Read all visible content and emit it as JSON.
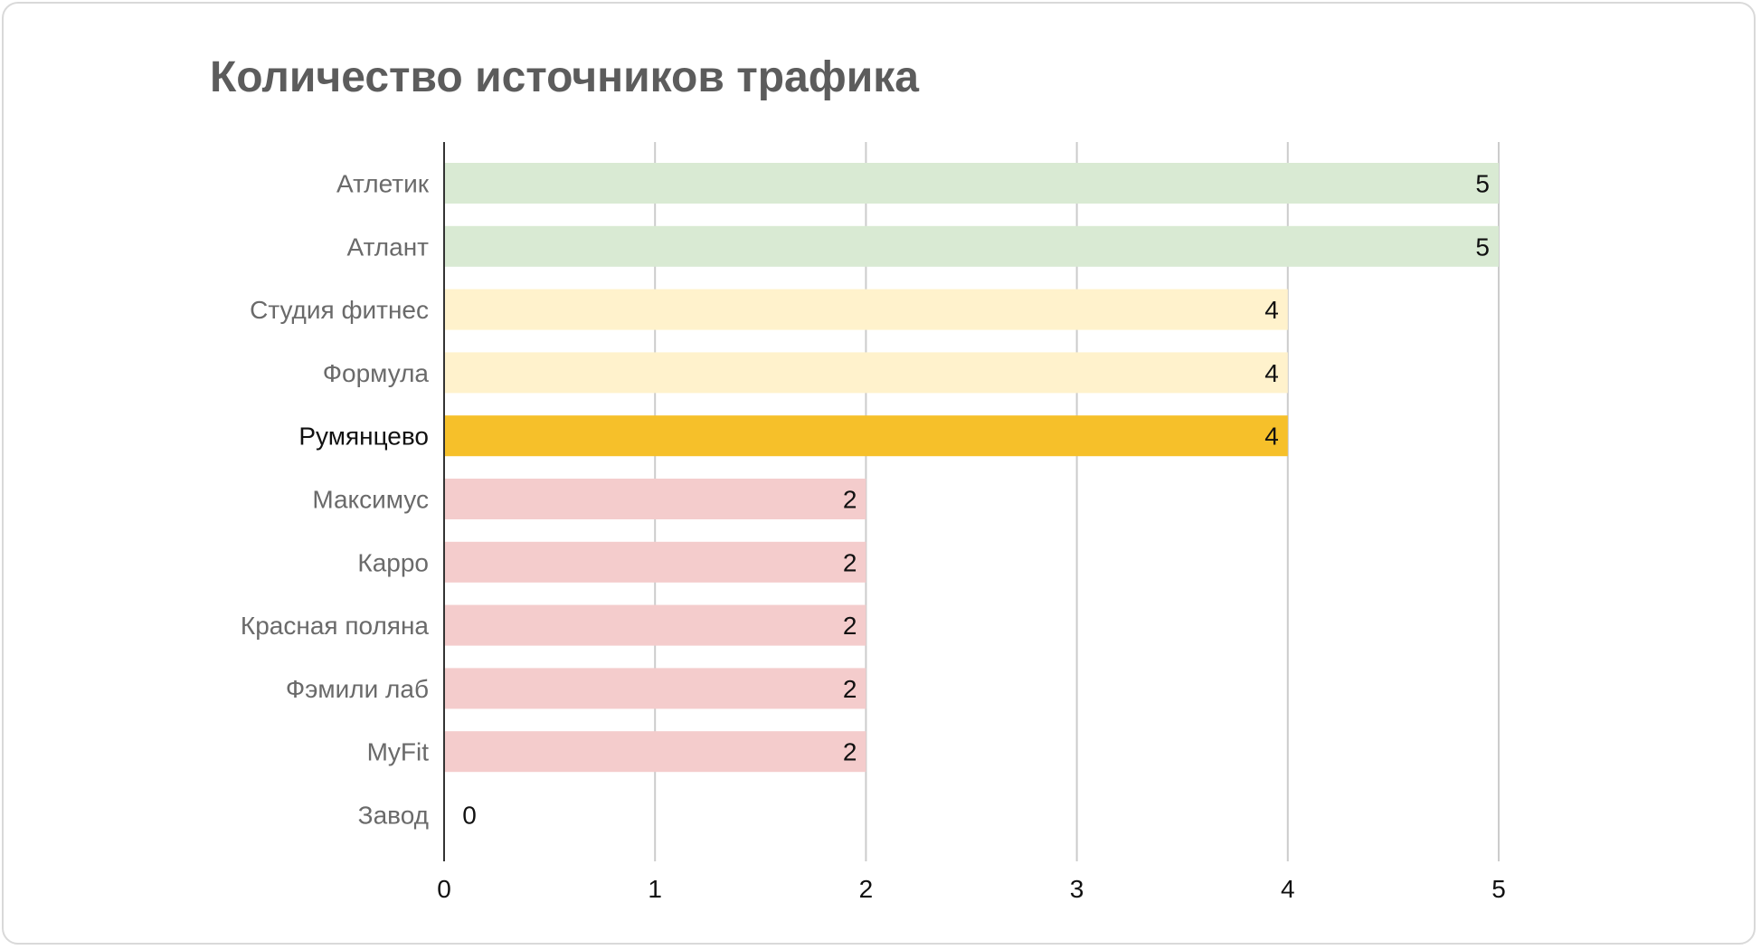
{
  "chart_data": {
    "type": "bar",
    "orientation": "horizontal",
    "title": "Количество источников трафика",
    "xlim": [
      0,
      5
    ],
    "x_ticks": [
      "0",
      "1",
      "2",
      "3",
      "4",
      "5"
    ],
    "grid": true,
    "legend": "none",
    "highlight_category": "Румянцево",
    "categories": [
      "Атлетик",
      "Атлант",
      "Студия фитнес",
      "Формула",
      "Румянцево",
      "Максимус",
      "Карро",
      "Красная поляна",
      "Фэмили лаб",
      "MyFit",
      "Завод"
    ],
    "values": [
      5,
      5,
      4,
      4,
      4,
      2,
      2,
      2,
      2,
      2,
      0
    ],
    "value_labels": [
      "5",
      "5",
      "4",
      "4",
      "4",
      "2",
      "2",
      "2",
      "2",
      "2",
      "0"
    ],
    "colors": [
      "#d9ead3",
      "#d9ead3",
      "#fff2cc",
      "#fff2cc",
      "#f6c02a",
      "#f4cccc",
      "#f4cccc",
      "#f4cccc",
      "#f4cccc",
      "#f4cccc",
      "#f4cccc"
    ]
  }
}
